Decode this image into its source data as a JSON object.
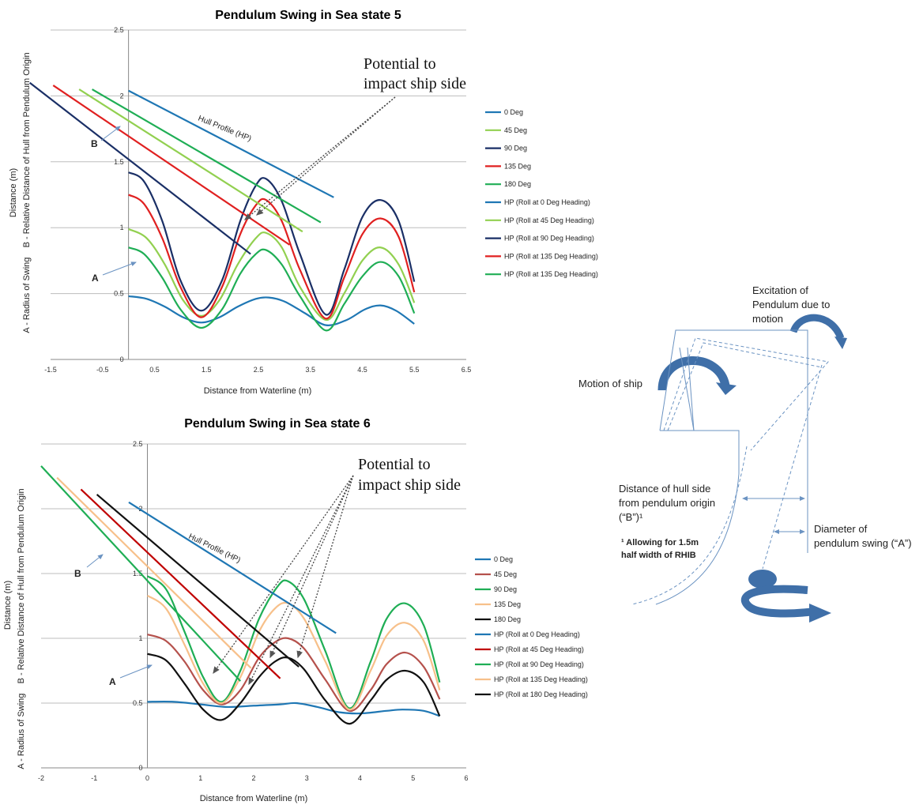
{
  "charts": [
    {
      "id": "ss5",
      "title": "Pendulum Swing in Sea state 5",
      "xlabel": "Distance from Waterline (m)",
      "ylabel_line1": "Distance (m)",
      "ylabel_line2": "A - Radius of Swing    B - Relative Distance of Hull from Pendulum Origin",
      "annotation": [
        "Potential to",
        "impact ship side"
      ],
      "hull_label": "Hull Profile (HP)",
      "label_A": "A",
      "label_B": "B",
      "xticks": [
        "-1.5",
        "-0.5",
        "0.5",
        "1.5",
        "2.5",
        "3.5",
        "4.5",
        "5.5",
        "6.5"
      ],
      "yticks": [
        "0",
        "0.5",
        "1",
        "1.5",
        "2",
        "2.5"
      ],
      "legend": [
        "0 Deg",
        "45 Deg",
        "90 Deg",
        "135 Deg",
        "180 Deg",
        "HP (Roll at 0 Deg Heading)",
        "HP (Roll at 45 Deg Heading)",
        "HP (Roll at 90 Deg Heading)",
        "HP (Roll at 135 Deg Heading)",
        "HP (Roll at 135 Deg Heading)"
      ]
    },
    {
      "id": "ss6",
      "title": "Pendulum Swing in Sea state 6",
      "xlabel": "Distance from Waterline (m)",
      "ylabel_line1": "Distance (m)",
      "ylabel_line2": "A - Radius of Swing    B - Relative Distance of Hull from Pendulum Origin",
      "annotation": [
        "Potential to",
        "impact ship side"
      ],
      "hull_label": "Hull Profile (HP)",
      "label_A": "A",
      "label_B": "B",
      "xticks": [
        "-2",
        "-1",
        "0",
        "1",
        "2",
        "3",
        "4",
        "5",
        "6"
      ],
      "yticks": [
        "0",
        "0.5",
        "1",
        "1.5",
        "2",
        "2.5"
      ],
      "legend": [
        "0 Deg",
        "45 Deg",
        "90 Deg",
        "135 Deg",
        "180 Deg",
        "HP (Roll at 0 Deg Heading)",
        "HP (Roll at 45 Deg Heading)",
        "HP (Roll at 90 Deg Heading)",
        "HP (Roll at 135 Deg Heading)",
        "HP (Roll at 180 Deg Heading)"
      ]
    }
  ],
  "diagram": {
    "excitation": [
      "Excitation of",
      "Pendulum due to",
      "motion"
    ],
    "motion": "Motion of ship",
    "hull_distance": [
      "Distance of hull side",
      "from pendulum origin",
      "(“B”)¹"
    ],
    "diameter": [
      "Diameter of",
      "pendulum swing (“A”)"
    ],
    "footnote": [
      "¹ Allowing for 1.5m",
      "half width of RHIB"
    ]
  },
  "chart_data": [
    {
      "type": "line",
      "title": "Pendulum Swing in Sea state 5",
      "xlabel": "Distance from Waterline (m)",
      "ylabel": "Distance (m)",
      "xlim": [
        -1.5,
        6.5
      ],
      "ylim": [
        0,
        2.5
      ],
      "grid": "horizontal",
      "legend_position": "right",
      "series": [
        {
          "name": "0 Deg",
          "color": "#1f77b4",
          "points": [
            [
              0,
              0.48
            ],
            [
              0.35,
              0.46
            ],
            [
              0.7,
              0.4
            ],
            [
              1.05,
              0.32
            ],
            [
              1.4,
              0.28
            ],
            [
              1.75,
              0.32
            ],
            [
              2.1,
              0.4
            ],
            [
              2.45,
              0.46
            ],
            [
              2.7,
              0.47
            ],
            [
              3.0,
              0.44
            ],
            [
              3.4,
              0.35
            ],
            [
              3.8,
              0.26
            ],
            [
              4.2,
              0.3
            ],
            [
              4.55,
              0.38
            ],
            [
              4.85,
              0.41
            ],
            [
              5.15,
              0.37
            ],
            [
              5.5,
              0.27
            ]
          ]
        },
        {
          "name": "45 Deg",
          "color": "#92d050",
          "points": [
            [
              0,
              0.99
            ],
            [
              0.35,
              0.92
            ],
            [
              0.7,
              0.72
            ],
            [
              1.05,
              0.45
            ],
            [
              1.4,
              0.33
            ],
            [
              1.75,
              0.45
            ],
            [
              2.1,
              0.72
            ],
            [
              2.45,
              0.92
            ],
            [
              2.65,
              0.96
            ],
            [
              2.95,
              0.85
            ],
            [
              3.3,
              0.55
            ],
            [
              3.8,
              0.3
            ],
            [
              4.15,
              0.5
            ],
            [
              4.5,
              0.75
            ],
            [
              4.85,
              0.85
            ],
            [
              5.2,
              0.72
            ],
            [
              5.5,
              0.43
            ]
          ]
        },
        {
          "name": "90 Deg",
          "color": "#1a2f66",
          "points": [
            [
              0,
              1.42
            ],
            [
              0.3,
              1.35
            ],
            [
              0.65,
              1.05
            ],
            [
              1.0,
              0.6
            ],
            [
              1.4,
              0.37
            ],
            [
              1.8,
              0.6
            ],
            [
              2.15,
              1.05
            ],
            [
              2.45,
              1.32
            ],
            [
              2.65,
              1.37
            ],
            [
              2.95,
              1.2
            ],
            [
              3.3,
              0.8
            ],
            [
              3.8,
              0.34
            ],
            [
              4.15,
              0.68
            ],
            [
              4.5,
              1.08
            ],
            [
              4.85,
              1.21
            ],
            [
              5.2,
              1.05
            ],
            [
              5.5,
              0.59
            ]
          ]
        },
        {
          "name": "135 Deg",
          "color": "#e02020",
          "points": [
            [
              0,
              1.25
            ],
            [
              0.3,
              1.18
            ],
            [
              0.65,
              0.92
            ],
            [
              1.0,
              0.55
            ],
            [
              1.4,
              0.32
            ],
            [
              1.8,
              0.55
            ],
            [
              2.15,
              0.95
            ],
            [
              2.45,
              1.17
            ],
            [
              2.65,
              1.21
            ],
            [
              2.95,
              1.05
            ],
            [
              3.3,
              0.68
            ],
            [
              3.8,
              0.31
            ],
            [
              4.15,
              0.62
            ],
            [
              4.5,
              0.95
            ],
            [
              4.85,
              1.07
            ],
            [
              5.2,
              0.93
            ],
            [
              5.5,
              0.51
            ]
          ]
        },
        {
          "name": "180 Deg",
          "color": "#1fae55",
          "points": [
            [
              0,
              0.85
            ],
            [
              0.3,
              0.8
            ],
            [
              0.65,
              0.62
            ],
            [
              1.0,
              0.38
            ],
            [
              1.4,
              0.24
            ],
            [
              1.8,
              0.38
            ],
            [
              2.15,
              0.65
            ],
            [
              2.45,
              0.8
            ],
            [
              2.65,
              0.83
            ],
            [
              2.95,
              0.72
            ],
            [
              3.3,
              0.48
            ],
            [
              3.8,
              0.22
            ],
            [
              4.15,
              0.42
            ],
            [
              4.5,
              0.63
            ],
            [
              4.85,
              0.74
            ],
            [
              5.2,
              0.63
            ],
            [
              5.5,
              0.35
            ]
          ]
        },
        {
          "name": "HP (Roll at 0 Deg Heading)",
          "color": "#1f77b4",
          "points": [
            [
              0.0,
              2.04
            ],
            [
              3.95,
              1.23
            ]
          ]
        },
        {
          "name": "HP (Roll at 45 Deg Heading)",
          "color": "#92d050",
          "points": [
            [
              -0.95,
              2.05
            ],
            [
              3.35,
              0.97
            ]
          ]
        },
        {
          "name": "HP (Roll at 90 Deg Heading)",
          "color": "#1a2f66",
          "points": [
            [
              -1.9,
              2.1
            ],
            [
              2.35,
              0.8
            ]
          ]
        },
        {
          "name": "HP (Roll at 135 Deg Heading)",
          "color": "#e02020",
          "points": [
            [
              -1.45,
              2.08
            ],
            [
              3.1,
              0.87
            ]
          ]
        },
        {
          "name": "HP (Roll at 135 Deg Heading)",
          "color": "#1fae55",
          "points": [
            [
              -0.7,
              2.05
            ],
            [
              3.7,
              1.04
            ]
          ]
        }
      ]
    },
    {
      "type": "line",
      "title": "Pendulum Swing in Sea state 6",
      "xlabel": "Distance from Waterline (m)",
      "ylabel": "Distance (m)",
      "xlim": [
        -2,
        6
      ],
      "ylim": [
        0,
        2.5
      ],
      "grid": "horizontal",
      "legend_position": "right",
      "series": [
        {
          "name": "0 Deg",
          "color": "#1f77b4",
          "points": [
            [
              0,
              0.51
            ],
            [
              0.5,
              0.51
            ],
            [
              1.0,
              0.49
            ],
            [
              1.5,
              0.47
            ],
            [
              2.0,
              0.48
            ],
            [
              2.5,
              0.49
            ],
            [
              2.8,
              0.5
            ],
            [
              3.2,
              0.47
            ],
            [
              3.6,
              0.43
            ],
            [
              4.0,
              0.42
            ],
            [
              4.5,
              0.44
            ],
            [
              4.8,
              0.45
            ],
            [
              5.2,
              0.44
            ],
            [
              5.5,
              0.4
            ]
          ]
        },
        {
          "name": "45 Deg",
          "color": "#b5514c",
          "points": [
            [
              0,
              1.03
            ],
            [
              0.35,
              0.98
            ],
            [
              0.7,
              0.82
            ],
            [
              1.05,
              0.6
            ],
            [
              1.4,
              0.49
            ],
            [
              1.75,
              0.6
            ],
            [
              2.1,
              0.85
            ],
            [
              2.4,
              0.97
            ],
            [
              2.65,
              1.0
            ],
            [
              2.95,
              0.92
            ],
            [
              3.35,
              0.68
            ],
            [
              3.8,
              0.44
            ],
            [
              4.2,
              0.6
            ],
            [
              4.5,
              0.8
            ],
            [
              4.85,
              0.89
            ],
            [
              5.2,
              0.78
            ],
            [
              5.5,
              0.53
            ]
          ]
        },
        {
          "name": "90 Deg",
          "color": "#1fae55",
          "points": [
            [
              0,
              1.48
            ],
            [
              0.35,
              1.38
            ],
            [
              0.7,
              1.05
            ],
            [
              1.05,
              0.7
            ],
            [
              1.4,
              0.51
            ],
            [
              1.75,
              0.75
            ],
            [
              2.1,
              1.15
            ],
            [
              2.45,
              1.4
            ],
            [
              2.65,
              1.44
            ],
            [
              2.95,
              1.3
            ],
            [
              3.35,
              0.9
            ],
            [
              3.8,
              0.46
            ],
            [
              4.2,
              0.82
            ],
            [
              4.5,
              1.15
            ],
            [
              4.85,
              1.27
            ],
            [
              5.2,
              1.1
            ],
            [
              5.5,
              0.66
            ]
          ]
        },
        {
          "name": "135 Deg",
          "color": "#f7c08a",
          "points": [
            [
              0,
              1.33
            ],
            [
              0.35,
              1.23
            ],
            [
              0.7,
              0.95
            ],
            [
              1.05,
              0.65
            ],
            [
              1.4,
              0.5
            ],
            [
              1.75,
              0.7
            ],
            [
              2.1,
              1.05
            ],
            [
              2.4,
              1.23
            ],
            [
              2.65,
              1.27
            ],
            [
              2.95,
              1.15
            ],
            [
              3.35,
              0.82
            ],
            [
              3.8,
              0.45
            ],
            [
              4.2,
              0.75
            ],
            [
              4.5,
              1.02
            ],
            [
              4.85,
              1.12
            ],
            [
              5.2,
              0.98
            ],
            [
              5.5,
              0.6
            ]
          ]
        },
        {
          "name": "180 Deg",
          "color": "#111111",
          "points": [
            [
              0,
              0.88
            ],
            [
              0.35,
              0.83
            ],
            [
              0.7,
              0.65
            ],
            [
              1.05,
              0.45
            ],
            [
              1.4,
              0.37
            ],
            [
              1.75,
              0.5
            ],
            [
              2.1,
              0.7
            ],
            [
              2.4,
              0.82
            ],
            [
              2.65,
              0.85
            ],
            [
              2.95,
              0.76
            ],
            [
              3.35,
              0.52
            ],
            [
              3.8,
              0.34
            ],
            [
              4.2,
              0.52
            ],
            [
              4.5,
              0.68
            ],
            [
              4.85,
              0.75
            ],
            [
              5.2,
              0.66
            ],
            [
              5.5,
              0.4
            ]
          ]
        },
        {
          "name": "HP (Roll at 0 Deg Heading)",
          "color": "#1f77b4",
          "points": [
            [
              -0.35,
              2.05
            ],
            [
              3.55,
              1.04
            ]
          ]
        },
        {
          "name": "HP (Roll at 45 Deg Heading)",
          "color": "#c00000",
          "points": [
            [
              -1.25,
              2.15
            ],
            [
              2.5,
              0.69
            ]
          ]
        },
        {
          "name": "HP (Roll at 90 Deg Heading)",
          "color": "#1fae55",
          "points": [
            [
              -2.0,
              2.33
            ],
            [
              1.75,
              0.67
            ]
          ]
        },
        {
          "name": "HP (Roll at 135 Deg Heading)",
          "color": "#f7c08a",
          "points": [
            [
              -1.7,
              2.24
            ],
            [
              1.95,
              0.77
            ]
          ]
        },
        {
          "name": "HP (Roll at 180 Deg Heading)",
          "color": "#111111",
          "points": [
            [
              -0.95,
              2.11
            ],
            [
              2.85,
              0.78
            ]
          ]
        }
      ]
    }
  ]
}
